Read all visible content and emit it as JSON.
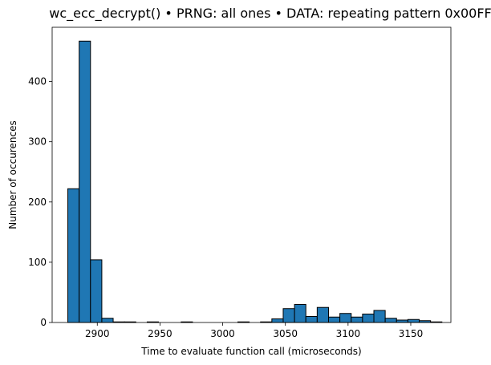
{
  "chart_data": {
    "type": "bar",
    "title": "wc_ecc_decrypt() • PRNG: all ones • DATA: repeating pattern 0x00FF",
    "xlabel": "Time to evaluate function call (microseconds)",
    "ylabel": "Number of occurences",
    "xlim": [
      2864,
      2879,
      3182
    ],
    "ylim": [
      0,
      490
    ],
    "x_ticks": [
      2900,
      2950,
      3000,
      3050,
      3100,
      3150
    ],
    "y_ticks": [
      0,
      100,
      200,
      300,
      400
    ],
    "bin_width": 9.04,
    "bins": [
      {
        "start": 2876.5,
        "value": 222
      },
      {
        "start": 2885.54,
        "value": 467
      },
      {
        "start": 2894.58,
        "value": 104
      },
      {
        "start": 2903.62,
        "value": 7
      },
      {
        "start": 2912.66,
        "value": 1
      },
      {
        "start": 2921.7,
        "value": 1
      },
      {
        "start": 2930.74,
        "value": 0
      },
      {
        "start": 2939.78,
        "value": 1
      },
      {
        "start": 2948.82,
        "value": 0
      },
      {
        "start": 2957.86,
        "value": 0
      },
      {
        "start": 2966.9,
        "value": 1
      },
      {
        "start": 2975.94,
        "value": 0
      },
      {
        "start": 2984.98,
        "value": 0
      },
      {
        "start": 2994.02,
        "value": 0
      },
      {
        "start": 3003.06,
        "value": 0
      },
      {
        "start": 3012.1,
        "value": 1
      },
      {
        "start": 3021.14,
        "value": 0
      },
      {
        "start": 3030.18,
        "value": 1
      },
      {
        "start": 3039.22,
        "value": 6
      },
      {
        "start": 3048.26,
        "value": 23
      },
      {
        "start": 3057.3,
        "value": 30
      },
      {
        "start": 3066.34,
        "value": 10
      },
      {
        "start": 3075.38,
        "value": 25
      },
      {
        "start": 3084.42,
        "value": 9
      },
      {
        "start": 3093.46,
        "value": 15
      },
      {
        "start": 3102.5,
        "value": 9
      },
      {
        "start": 3111.54,
        "value": 14
      },
      {
        "start": 3120.58,
        "value": 20
      },
      {
        "start": 3129.62,
        "value": 7
      },
      {
        "start": 3138.66,
        "value": 4
      },
      {
        "start": 3147.7,
        "value": 5
      },
      {
        "start": 3156.74,
        "value": 3
      },
      {
        "start": 3165.78,
        "value": 1
      }
    ],
    "colors": {
      "bar_fill": "#1f77b4",
      "bar_edge": "#000000"
    },
    "grid": false
  }
}
